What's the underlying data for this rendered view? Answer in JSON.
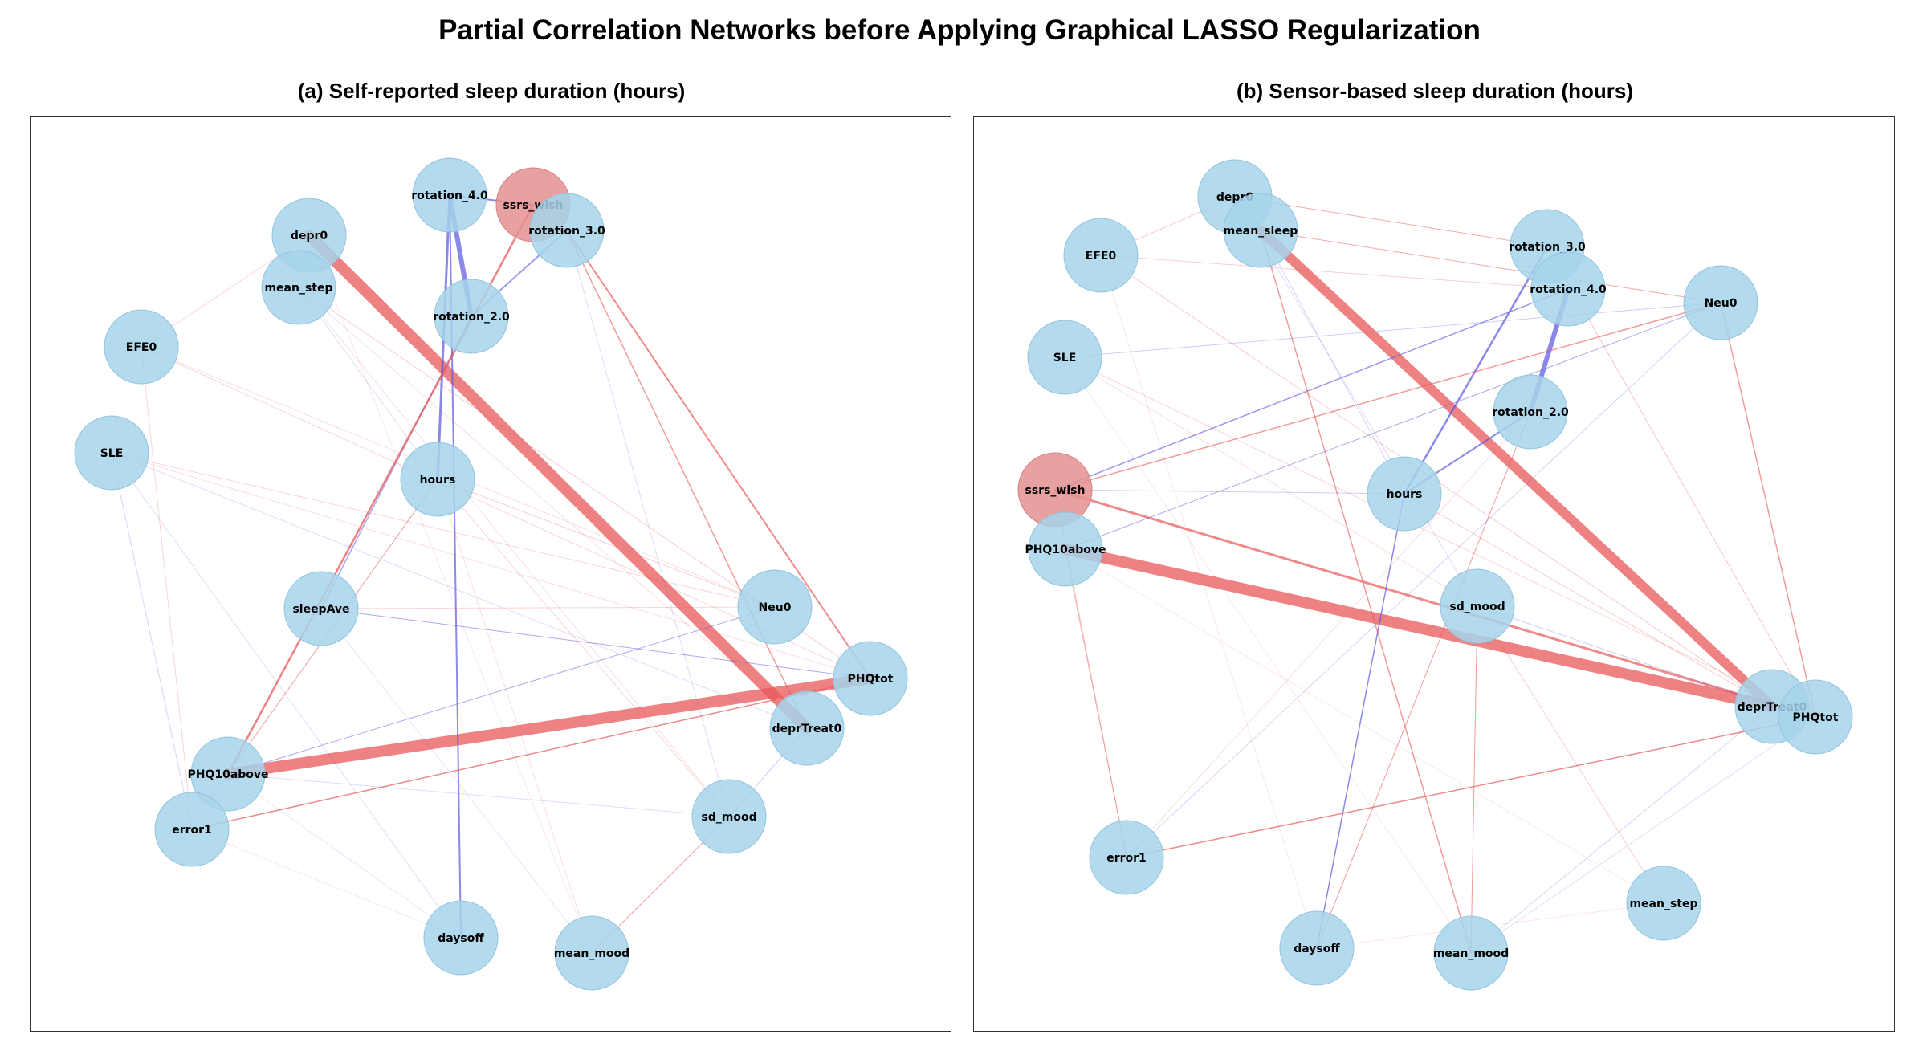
{
  "title": "Partial Correlation Networks before Applying Graphical LASSO Regularization",
  "colors": {
    "node_default": "#a6d3ea",
    "node_highlight": "#e49191",
    "edge_positive": "#e8585a",
    "edge_negative": "#5a55e0"
  },
  "panels": [
    {
      "title": "(a) Self-reported sleep duration (hours)",
      "nodes": [
        {
          "label": "rotation_4.0"
        },
        {
          "label": "ssrs_wish",
          "highlight": true
        },
        {
          "label": "rotation_3.0"
        },
        {
          "label": "depr0"
        },
        {
          "label": "mean_step"
        },
        {
          "label": "rotation_2.0"
        },
        {
          "label": "EFE0"
        },
        {
          "label": "SLE"
        },
        {
          "label": "hours"
        },
        {
          "label": "sleepAve"
        },
        {
          "label": "Neu0"
        },
        {
          "label": "PHQtot"
        },
        {
          "label": "deprTreat0"
        },
        {
          "label": "PHQ10above"
        },
        {
          "label": "error1"
        },
        {
          "label": "sd_mood"
        },
        {
          "label": "daysoff"
        },
        {
          "label": "mean_mood"
        }
      ]
    },
    {
      "title": "(b) Sensor-based sleep duration (hours)",
      "nodes": [
        {
          "label": "depr0"
        },
        {
          "label": "mean_sleep"
        },
        {
          "label": "EFE0"
        },
        {
          "label": "rotation_3.0"
        },
        {
          "label": "rotation_4.0"
        },
        {
          "label": "Neu0"
        },
        {
          "label": "SLE"
        },
        {
          "label": "rotation_2.0"
        },
        {
          "label": "ssrs_wish",
          "highlight": true
        },
        {
          "label": "hours"
        },
        {
          "label": "PHQ10above"
        },
        {
          "label": "sd_mood"
        },
        {
          "label": "deprTreat0"
        },
        {
          "label": "PHQtot"
        },
        {
          "label": "error1"
        },
        {
          "label": "mean_step"
        },
        {
          "label": "daysoff"
        },
        {
          "label": "mean_mood"
        }
      ]
    }
  ]
}
